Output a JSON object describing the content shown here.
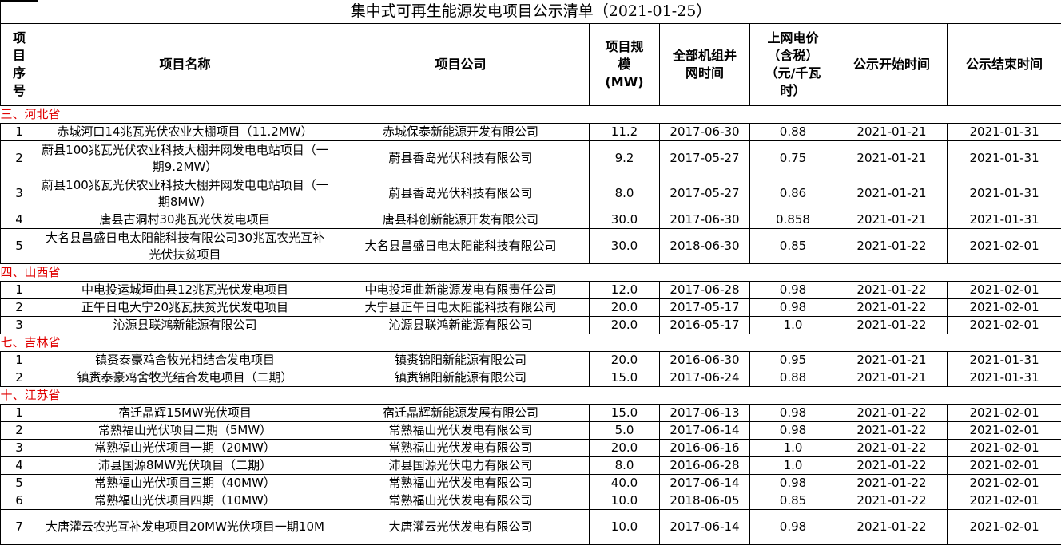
{
  "title": "集中式可再生能源发电项目公示清单（2021-01-25）",
  "headers": [
    "项目序号",
    "项目名称",
    "项目公司",
    "项目规模（MW）",
    "全部机组并网时间",
    "上网电价（含税）（元/千瓦时）",
    "公示开始时间",
    "公示结束时间"
  ],
  "header_display": [
    "项\n目\n序\n号",
    "项目名称",
    "项目公司",
    "项目规\n模\n(MW)",
    "全部机组并\n网时间",
    "上网电价\n（含税）\n（元/千瓦\n时）",
    "公示开始时间",
    "公示结束时间"
  ],
  "colors": {
    "province_heading": "#e00000",
    "border": "#000000"
  },
  "sections": [
    {
      "province": "三、河北省",
      "rows": [
        [
          "1",
          "赤城河口14兆瓦光伏农业大棚项目（11.2MW）",
          "赤城保泰新能源开发有限公司",
          "11.2",
          "2017-06-30",
          "0.88",
          "2021-01-21",
          "2021-01-31"
        ],
        [
          "2",
          "蔚县100兆瓦光伏农业科技大棚并网发电电站项目（一期9.2MW）",
          "蔚县香岛光伏科技有限公司",
          "9.2",
          "2017-05-27",
          "0.75",
          "2021-01-21",
          "2021-01-31"
        ],
        [
          "3",
          "蔚县100兆瓦光伏农业科技大棚并网发电电站项目（一期8MW）",
          "蔚县香岛光伏科技有限公司",
          "8.0",
          "2017-05-27",
          "0.86",
          "2021-01-21",
          "2021-01-31"
        ],
        [
          "4",
          "唐县古洞村30兆瓦光伏发电项目",
          "唐县科创新能源开发有限公司",
          "30.0",
          "2017-06-30",
          "0.858",
          "2021-01-21",
          "2021-01-31"
        ],
        [
          "5",
          "大名县昌盛日电太阳能科技有限公司30兆瓦农光互补光伏扶贫项目",
          "大名县昌盛日电太阳能科技有限公司",
          "30.0",
          "2018-06-30",
          "0.85",
          "2021-01-22",
          "2021-02-01"
        ]
      ]
    },
    {
      "province": "四、山西省",
      "rows": [
        [
          "1",
          "中电投运城垣曲县12兆瓦光伏发电项目",
          "中电投垣曲新能源发电有限责任公司",
          "12.0",
          "2017-06-28",
          "0.98",
          "2021-01-22",
          "2021-02-01"
        ],
        [
          "2",
          "正午日电大宁20兆瓦扶贫光伏发电项目",
          "大宁县正午日电太阳能科技有限公司",
          "20.0",
          "2017-05-17",
          "0.98",
          "2021-01-22",
          "2021-02-01"
        ],
        [
          "3",
          "沁源县联鸿新能源有限公司",
          "沁源县联鸿新能源有限公司",
          "20.0",
          "2016-05-17",
          "1.0",
          "2021-01-22",
          "2021-02-01"
        ]
      ]
    },
    {
      "province": "七、吉林省",
      "rows": [
        [
          "1",
          "镇赉泰豪鸡舍牧光相结合发电项目",
          "镇赉锦阳新能源有限公司",
          "20.0",
          "2016-06-30",
          "0.95",
          "2021-01-21",
          "2021-01-31"
        ],
        [
          "2",
          "镇赉泰豪鸡舍牧光结合发电项目（二期）",
          "镇赉锦阳新能源有限公司",
          "15.0",
          "2017-06-24",
          "0.88",
          "2021-01-21",
          "2021-01-31"
        ]
      ]
    },
    {
      "province": "十、江苏省",
      "rows": [
        [
          "1",
          "宿迁晶辉15MW光伏项目",
          "宿迁晶辉新能源发展有限公司",
          "15.0",
          "2017-06-13",
          "0.98",
          "2021-01-22",
          "2021-02-01"
        ],
        [
          "2",
          "常熟福山光伏项目二期（5MW）",
          "常熟福山光伏发电有限公司",
          "5.0",
          "2017-06-14",
          "0.98",
          "2021-01-22",
          "2021-02-01"
        ],
        [
          "3",
          "常熟福山光伏项目一期（20MW）",
          "常熟福山光伏发电有限公司",
          "20.0",
          "2016-06-16",
          "1.0",
          "2021-01-22",
          "2021-02-01"
        ],
        [
          "4",
          "沛县国源8MW光伏项目（二期）",
          "沛县国源光伏电力有限公司",
          "8.0",
          "2016-06-28",
          "1.0",
          "2021-01-22",
          "2021-02-01"
        ],
        [
          "5",
          "常熟福山光伏项目三期（40MW）",
          "常熟福山光伏发电有限公司",
          "40.0",
          "2017-06-14",
          "0.98",
          "2021-01-22",
          "2021-02-01"
        ],
        [
          "6",
          "常熟福山光伏项目四期（10MW）",
          "常熟福山光伏发电有限公司",
          "10.0",
          "2018-06-05",
          "0.85",
          "2021-01-22",
          "2021-02-01"
        ],
        [
          "7",
          "大唐灌云农光互补发电项目20MW光伏项目一期10M",
          "大唐灌云光伏发电有限公司",
          "10.0",
          "2017-06-14",
          "0.98",
          "2021-01-22",
          "2021-02-01"
        ]
      ]
    }
  ]
}
